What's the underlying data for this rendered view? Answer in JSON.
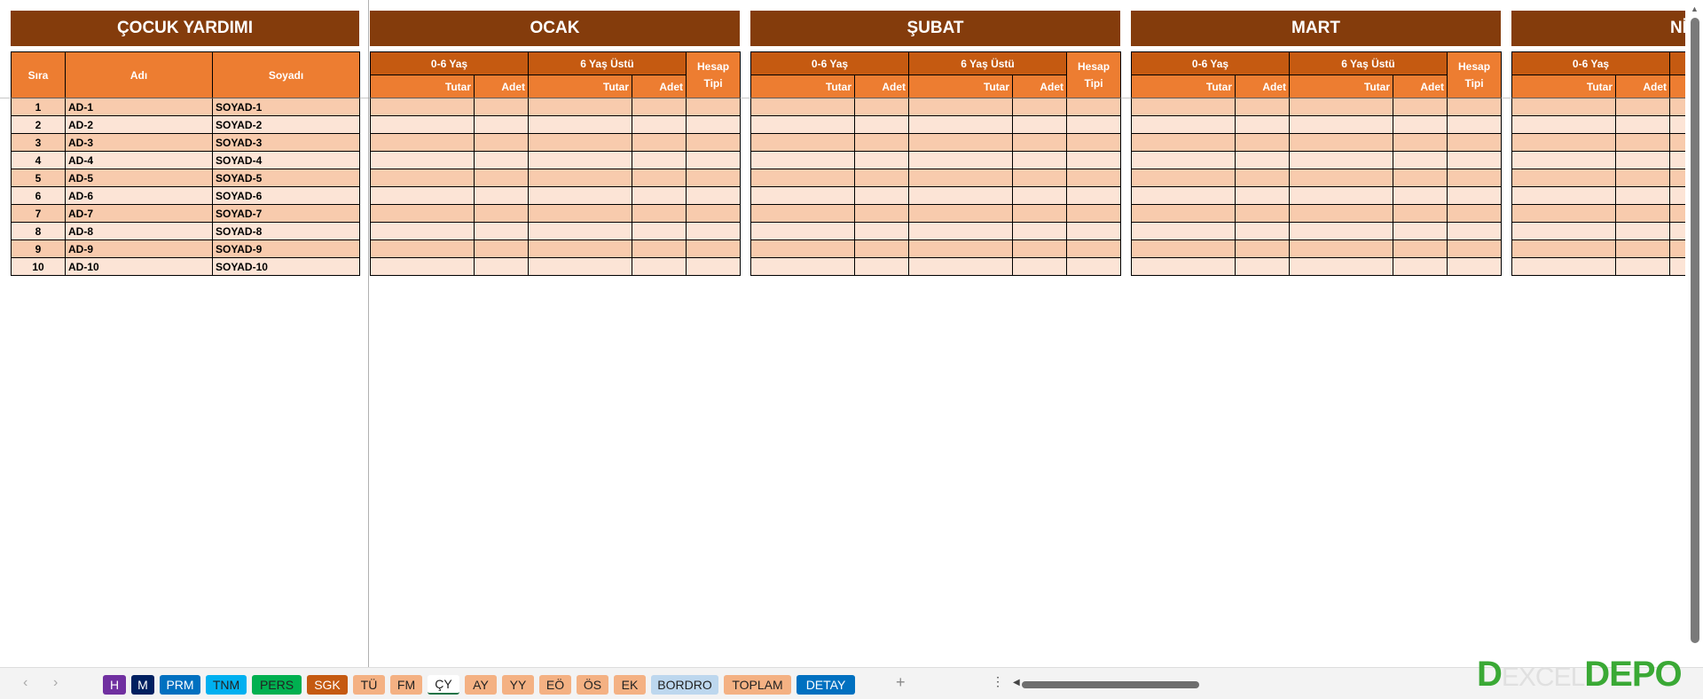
{
  "left_table": {
    "title": "ÇOCUK YARDIMI",
    "headers": [
      "Sıra",
      "Adı",
      "Soyadı"
    ],
    "rows": [
      [
        "1",
        "AD-1",
        "SOYAD-1"
      ],
      [
        "2",
        "AD-2",
        "SOYAD-2"
      ],
      [
        "3",
        "AD-3",
        "SOYAD-3"
      ],
      [
        "4",
        "AD-4",
        "SOYAD-4"
      ],
      [
        "5",
        "AD-5",
        "SOYAD-5"
      ],
      [
        "6",
        "AD-6",
        "SOYAD-6"
      ],
      [
        "7",
        "AD-7",
        "SOYAD-7"
      ],
      [
        "8",
        "AD-8",
        "SOYAD-8"
      ],
      [
        "9",
        "AD-9",
        "SOYAD-9"
      ],
      [
        "10",
        "AD-10",
        "SOYAD-10"
      ]
    ]
  },
  "month_headers": {
    "group1": "0-6 Yaş",
    "group2": "6 Yaş Üstü",
    "hesap": "Hesap Tipi",
    "tutar": "Tutar",
    "adet": "Adet"
  },
  "months": [
    "OCAK",
    "ŞUBAT",
    "MART",
    "NİSAN"
  ],
  "tabs": [
    {
      "label": "H",
      "color": "#7030a0",
      "text": "#ffffff"
    },
    {
      "label": "M",
      "color": "#002060",
      "text": "#ffffff"
    },
    {
      "label": "PRM",
      "color": "#0070c0",
      "text": "#ffffff"
    },
    {
      "label": "TNM",
      "color": "#00b0f0",
      "text": "#222222"
    },
    {
      "label": "PERS",
      "color": "#00b050",
      "text": "#222222"
    },
    {
      "label": "SGK",
      "color": "#c55a11",
      "text": "#ffffff"
    },
    {
      "label": "TÜ",
      "color": "#f4b183",
      "text": "#222222"
    },
    {
      "label": "FM",
      "color": "#f4b183",
      "text": "#222222"
    },
    {
      "label": "ÇY",
      "color": "#ffffff",
      "text": "#222222",
      "active": true
    },
    {
      "label": "AY",
      "color": "#f4b183",
      "text": "#222222"
    },
    {
      "label": "YY",
      "color": "#f4b183",
      "text": "#222222"
    },
    {
      "label": "EÖ",
      "color": "#f4b183",
      "text": "#222222"
    },
    {
      "label": "ÖS",
      "color": "#f4b183",
      "text": "#222222"
    },
    {
      "label": "EK",
      "color": "#f4b183",
      "text": "#222222"
    },
    {
      "label": "BORDRO",
      "color": "#bdd7ee",
      "text": "#222222"
    },
    {
      "label": "TOPLAM",
      "color": "#f4b183",
      "text": "#222222"
    },
    {
      "label": "DETAY",
      "color": "#0070c0",
      "text": "#ffffff"
    }
  ],
  "watermark": "EXCELDEPO",
  "colors": {
    "title_band": "#843c0c",
    "header": "#ed7d31",
    "group_header": "#c55a11",
    "row_odd": "#f8cbad",
    "row_even": "#fce4d6"
  }
}
